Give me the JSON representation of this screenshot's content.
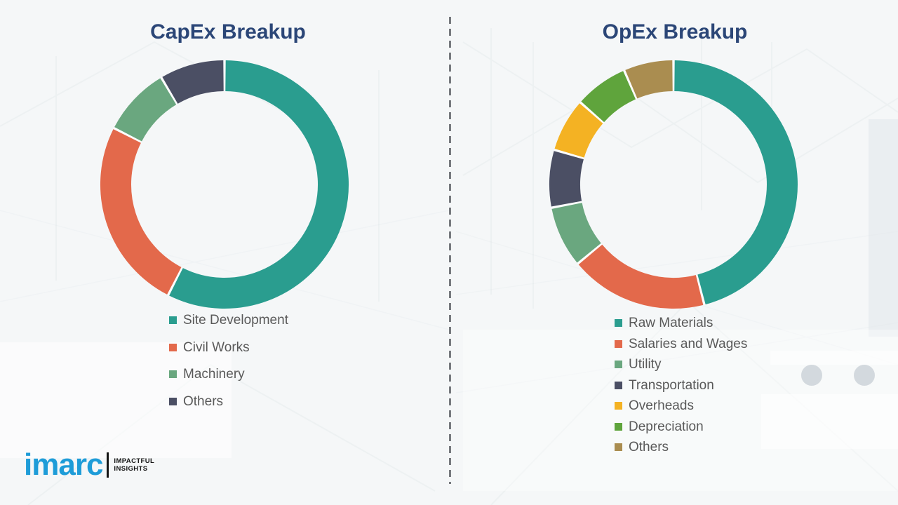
{
  "chart_data": [
    {
      "type": "pie",
      "donut": true,
      "title": "CapEx Breakup",
      "labels": [
        "Site Development",
        "Civil Works",
        "Machinery",
        "Others"
      ],
      "values": [
        57.5,
        25,
        9,
        8.5
      ],
      "value_unit": "percent-estimated-from-arc-angles",
      "colors": [
        "#2A9D8F",
        "#E3694B",
        "#6AA77F",
        "#4B4F64"
      ],
      "legend_position": "below-chart-left"
    },
    {
      "type": "pie",
      "donut": true,
      "title": "OpEx Breakup",
      "labels": [
        "Raw Materials",
        "Salaries and Wages",
        "Utility",
        "Transportation",
        "Overheads",
        "Depreciation",
        "Others"
      ],
      "values": [
        46,
        18,
        8,
        7.5,
        7,
        7,
        6.5
      ],
      "value_unit": "percent-estimated-from-arc-angles",
      "colors": [
        "#2A9D8F",
        "#E3694B",
        "#6AA77F",
        "#4B4F64",
        "#F4B223",
        "#5FA43C",
        "#AA8D50"
      ],
      "legend_position": "below-chart-left"
    }
  ],
  "logo": {
    "brand": "imarc",
    "brand_color": "#1E9CD8",
    "tagline": [
      "IMPACTFUL",
      "INSIGHTS"
    ]
  }
}
